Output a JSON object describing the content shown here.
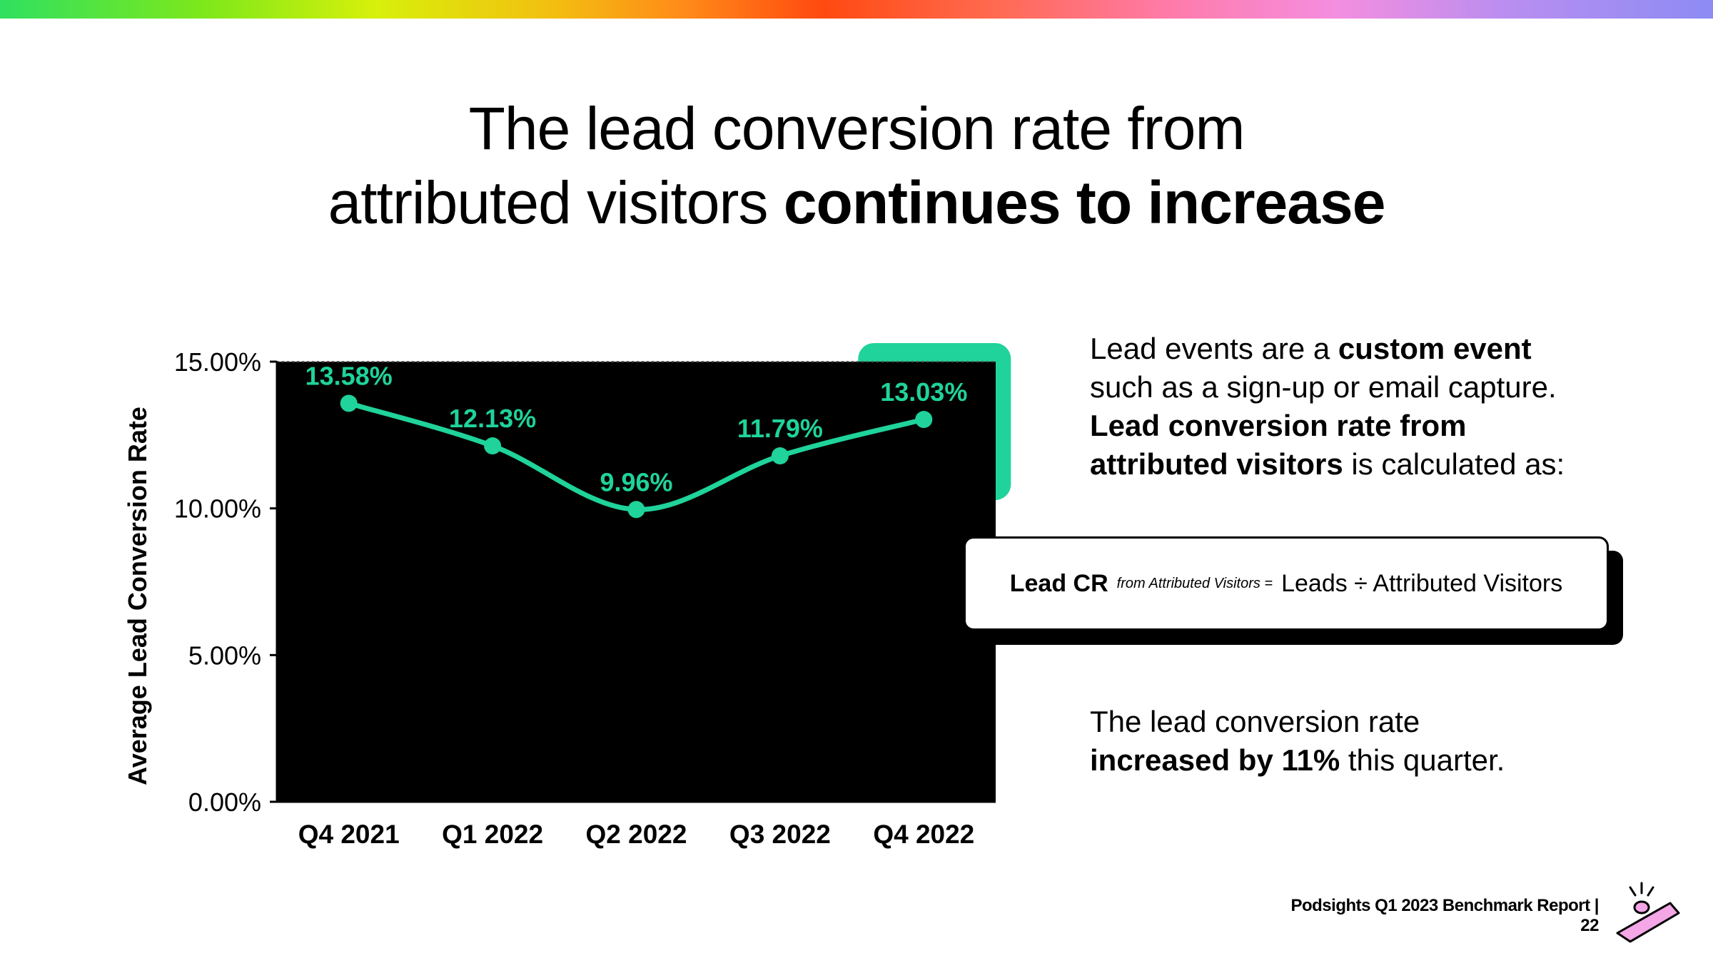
{
  "header": {
    "title_line1": "The lead conversion rate from",
    "title_line2_regular": "attributed visitors ",
    "title_line2_bold": "continues to increase"
  },
  "chart_data": {
    "type": "line",
    "categories": [
      "Q4 2021",
      "Q1 2022",
      "Q2 2022",
      "Q3 2022",
      "Q4 2022"
    ],
    "values": [
      13.58,
      12.13,
      9.96,
      11.79,
      13.03
    ],
    "data_labels": [
      "13.58%",
      "12.13%",
      "9.96%",
      "11.79%",
      "13.03%"
    ],
    "ylabel": "Average Lead Conversion Rate",
    "xlabel": "",
    "ylim": [
      0,
      15
    ],
    "yticks": [
      0,
      5,
      10,
      15
    ],
    "ytick_labels": [
      "0.00%",
      "5.00%",
      "10.00%",
      "15.00%"
    ],
    "grid": false,
    "highlight_category": "Q4 2022",
    "colors": {
      "line": "#1fd39a",
      "background": "#000000",
      "highlight": "#1fd39a"
    }
  },
  "side": {
    "p1_a": "Lead events are a ",
    "p1_b": "custom event",
    "p1_c": "such as a sign-up or email capture.",
    "p1_d": "Lead conversion rate from",
    "p1_e": "attributed visitors",
    "p1_f": " is calculated as:",
    "formula_label": "Lead CR",
    "formula_sub": "from Attributed Visitors =",
    "formula_rhs": "Leads ÷ Attributed Visitors",
    "p2_a": "The lead conversion rate",
    "p2_b": "increased by 11%",
    "p2_c": " this quarter."
  },
  "footer": {
    "text": "Podsights Q1 2023 Benchmark Report | 22"
  },
  "mascot": {
    "icon": "party-horn-icon",
    "color": "#f4a6e6"
  }
}
